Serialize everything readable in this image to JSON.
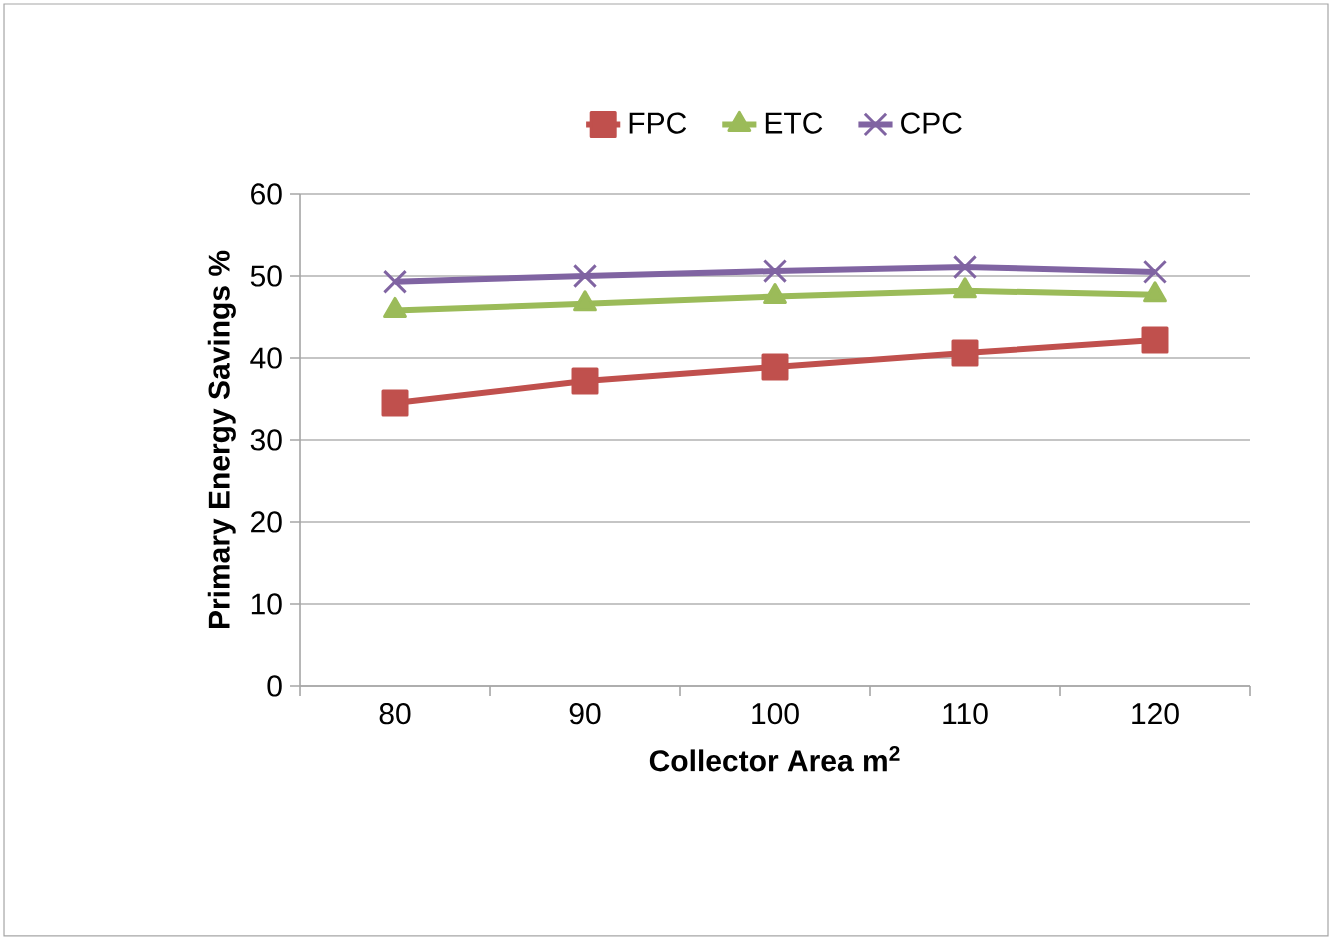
{
  "chart_data": {
    "type": "line",
    "xlabel": "Collector Area m$^{2}$",
    "ylabel": "Primary Energy Savings %",
    "categories": [
      "80",
      "90",
      "100",
      "110",
      "120"
    ],
    "series": [
      {
        "name": "FPC",
        "color": "#c0504d",
        "marker": "square",
        "values": [
          34.5,
          37.2,
          38.9,
          40.6,
          42.2
        ]
      },
      {
        "name": "ETC",
        "color": "#9bbb59",
        "marker": "triangle",
        "values": [
          45.8,
          46.6,
          47.5,
          48.2,
          47.7
        ]
      },
      {
        "name": "CPC",
        "color": "#8064a2",
        "marker": "cross",
        "values": [
          49.3,
          50.0,
          50.6,
          51.1,
          50.5
        ]
      }
    ],
    "ylim": [
      0,
      60
    ],
    "yticks": [
      0,
      10,
      20,
      30,
      40,
      50,
      60
    ],
    "grid": "y",
    "legend": "top",
    "line_style": "solid"
  }
}
